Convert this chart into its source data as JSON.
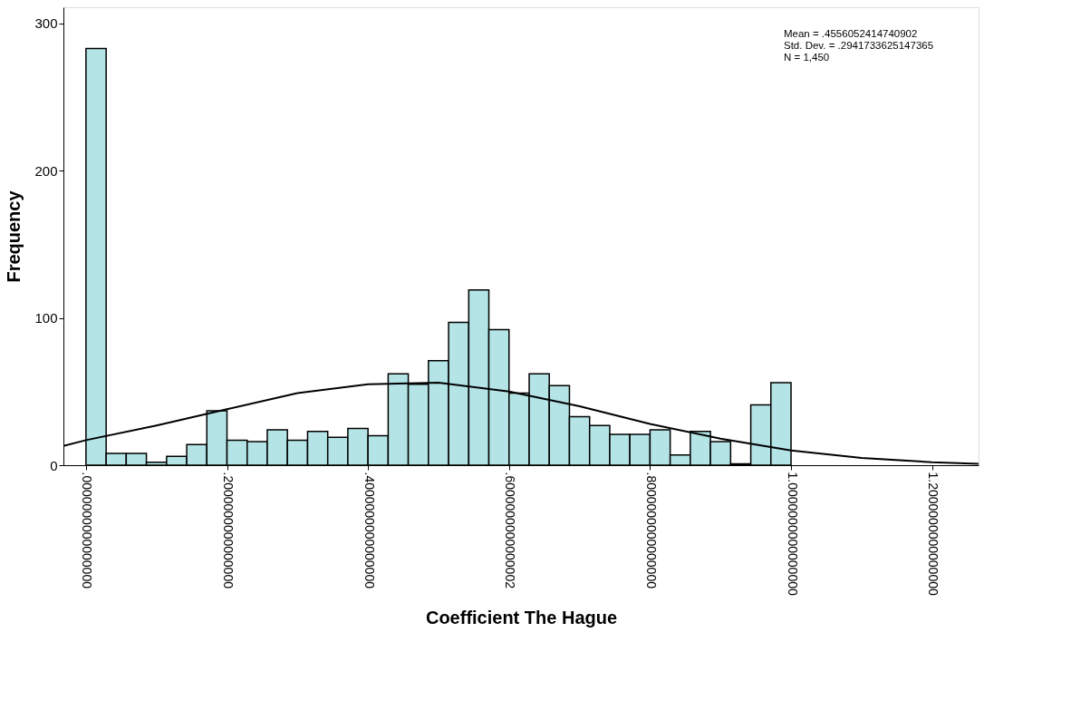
{
  "chart_data": {
    "type": "histogram",
    "xlabel": "Coefficient The Hague",
    "ylabel": "Frequency",
    "xlim": [
      -0.032,
      1.266
    ],
    "ylim": [
      0,
      311
    ],
    "xticks": [
      {
        "value": 0,
        "label": ".0000000000000000"
      },
      {
        "value": 0.2,
        "label": ".2000000000000000"
      },
      {
        "value": 0.4,
        "label": ".4000000000000000"
      },
      {
        "value": 0.6,
        "label": ".6000000000000002"
      },
      {
        "value": 0.8,
        "label": ".8000000000000000"
      },
      {
        "value": 1.0,
        "label": "1.0000000000000000"
      },
      {
        "value": 1.2,
        "label": "1.2000000000000000"
      }
    ],
    "yticks": [
      0,
      100,
      200,
      300
    ],
    "grid": false,
    "annotations": [
      "Mean = .4556052414740902",
      "Std. Dev. = .2941733625147365",
      "N = 1,450"
    ],
    "series": [
      {
        "color": "#b4e4e6",
        "bins": [
          0,
          0.0286,
          0.0571,
          0.0857,
          0.1143,
          0.1429,
          0.1714,
          0.2,
          0.2286,
          0.2571,
          0.2857,
          0.3143,
          0.3429,
          0.3714,
          0.4,
          0.4286,
          0.4571,
          0.4857,
          0.5143,
          0.5429,
          0.5714,
          0.6,
          0.6286,
          0.6571,
          0.6857,
          0.7143,
          0.7429,
          0.7714,
          0.8,
          0.8286,
          0.8571,
          0.8857,
          0.9143,
          0.9429,
          0.9714,
          1.0
        ],
        "values": [
          283,
          8,
          8,
          2,
          6,
          14,
          37,
          17,
          16,
          24,
          17,
          23,
          19,
          25,
          20,
          62,
          55,
          71,
          97,
          119,
          92,
          49,
          62,
          54,
          33,
          27,
          21,
          21,
          24,
          7,
          23,
          16,
          1,
          41,
          56
        ]
      },
      {
        "type": "line",
        "color": "#000000",
        "marker": "none",
        "line_style": "solid",
        "x": [
          -0.032,
          0.0,
          0.1,
          0.2,
          0.3,
          0.4,
          0.5,
          0.6,
          0.7,
          0.8,
          0.9,
          1.0,
          1.1,
          1.2,
          1.266
        ],
        "values": [
          13,
          17,
          27,
          38,
          49,
          55,
          56,
          50,
          40,
          28,
          18,
          10,
          5,
          2,
          1
        ]
      }
    ]
  }
}
